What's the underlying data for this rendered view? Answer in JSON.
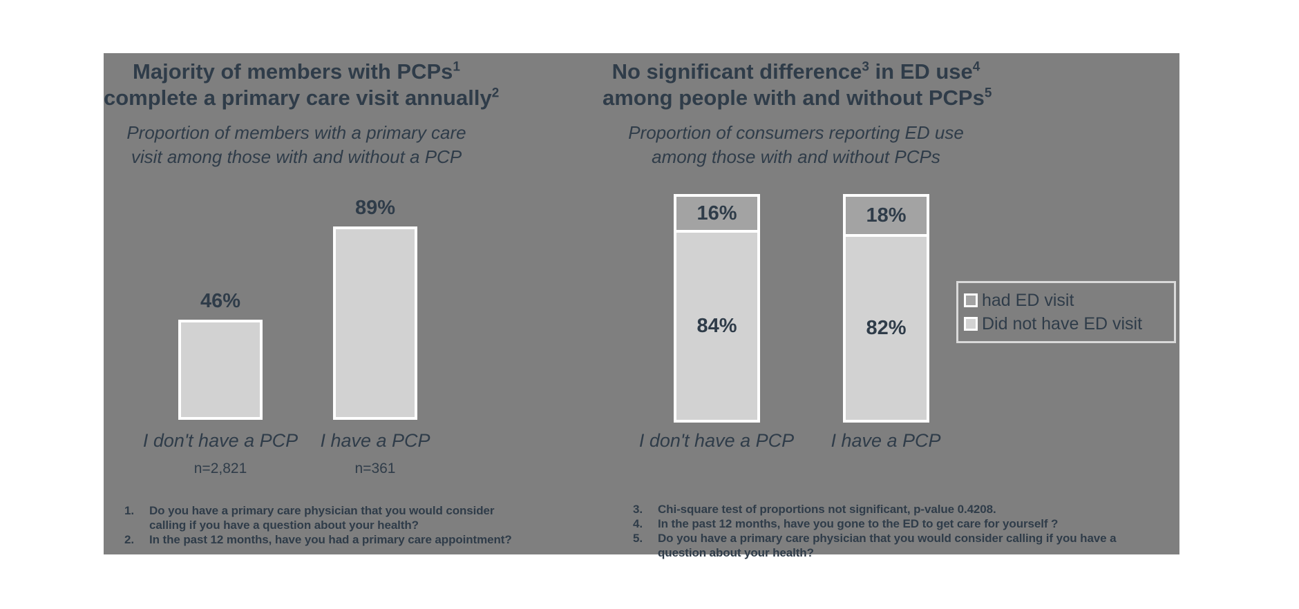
{
  "colors": {
    "slide_background": "#7f7f7f",
    "text": "#2f3c49",
    "bar_light_fill": "#d2d2d2",
    "bar_dark_fill": "#a3a3a3",
    "bar_border": "#ffffff",
    "legend_border": "#d9d9d9",
    "page_background": "#ffffff"
  },
  "left_panel": {
    "title": {
      "line1_text": "Majority of members with PCPs",
      "line1_sup": "1",
      "line2_text": "complete a primary care visit annually",
      "line2_sup": "2"
    },
    "subtitle_line1": "Proportion of members with a primary care",
    "subtitle_line2": "visit among those with and without a PCP",
    "bars": [
      {
        "value_label": "46%",
        "category": "I don't have a PCP",
        "n_label": "n=2,821"
      },
      {
        "value_label": "89%",
        "category": "I have a PCP",
        "n_label": "n=361"
      }
    ],
    "footnotes": [
      {
        "num": "1.",
        "text": "Do you have a primary care physician that you would consider calling if you have a question about your health?"
      },
      {
        "num": "2.",
        "text": "In the past 12 months, have you had a primary care appointment?"
      }
    ]
  },
  "right_panel": {
    "title": {
      "line1_text1": "No significant difference",
      "line1_sup1": "3",
      "line1_text2": " in ED use",
      "line1_sup2": "4",
      "line2_text": "among people with and without PCPs",
      "line2_sup": "5"
    },
    "subtitle_line1": "Proportion of consumers reporting ED use",
    "subtitle_line2": "among those with and without PCPs",
    "bars": [
      {
        "category": "I don't have a PCP",
        "segments": [
          {
            "name": "had ED visit",
            "label": "16%"
          },
          {
            "name": "Did not have ED visit",
            "label": "84%"
          }
        ]
      },
      {
        "category": "I have a PCP",
        "segments": [
          {
            "name": "had ED visit",
            "label": "18%"
          },
          {
            "name": "Did not have ED visit",
            "label": "82%"
          }
        ]
      }
    ],
    "legend": {
      "items": [
        {
          "label": "had ED visit",
          "color": "#a3a3a3"
        },
        {
          "label": "Did not have ED visit",
          "color": "#d2d2d2"
        }
      ]
    },
    "footnotes": [
      {
        "num": "3.",
        "text": "Chi-square test of proportions not significant, p-value 0.4208."
      },
      {
        "num": "4.",
        "text": "In the past 12 months, have you gone to the ED to get care for yourself ?"
      },
      {
        "num": "5.",
        "text": "Do you have a primary care physician that you would consider calling if you have a question about your health?"
      }
    ]
  },
  "chart_data": [
    {
      "type": "bar",
      "title": "Majority of members with PCPs¹ complete a primary care visit annually²",
      "subtitle": "Proportion of members with a primary care visit among those with and without a PCP",
      "categories": [
        "I don't have a PCP",
        "I have a PCP"
      ],
      "values": [
        46,
        89
      ],
      "sample_sizes": [
        "n=2,821",
        "n=361"
      ],
      "unit": "percent",
      "ylim": [
        0,
        100
      ],
      "grid": false,
      "data_labels": true,
      "bar_fill": "#d2d2d2"
    },
    {
      "type": "bar",
      "subtype": "stacked-100",
      "title": "No significant difference³ in ED use⁴ among people with and without PCPs⁵",
      "subtitle": "Proportion of consumers reporting ED use among those with and without PCPs",
      "categories": [
        "I don't have a PCP",
        "I have a PCP"
      ],
      "series": [
        {
          "name": "had ED visit",
          "values": [
            16,
            18
          ],
          "color": "#a3a3a3"
        },
        {
          "name": "Did not have ED visit",
          "values": [
            84,
            82
          ],
          "color": "#d2d2d2"
        }
      ],
      "unit": "percent",
      "ylim": [
        0,
        100
      ],
      "grid": false,
      "legend_position": "right",
      "data_labels": true
    }
  ]
}
